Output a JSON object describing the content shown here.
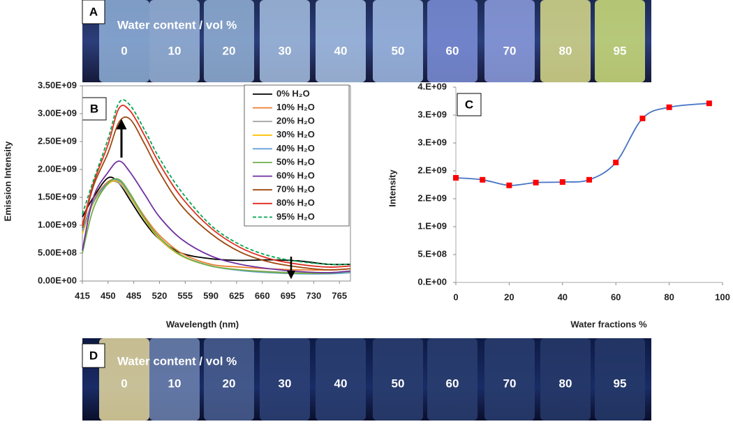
{
  "photo_a": {
    "label": "A",
    "caption": "Water content / vol %",
    "vials": [
      "0",
      "10",
      "20",
      "30",
      "40",
      "50",
      "60",
      "70",
      "80",
      "95"
    ]
  },
  "chart_data": [
    {
      "type": "line",
      "label": "B",
      "xlabel": "Wavelength (nm)",
      "ylabel": "Emission Intensity",
      "x": [
        415,
        430,
        450,
        465,
        480,
        500,
        520,
        550,
        590,
        630,
        670,
        710,
        750,
        780
      ],
      "series": [
        {
          "name": "0% H₂O",
          "color": "#000000",
          "values": [
            1150000000.0,
            1500000000.0,
            1850000000.0,
            1750000000.0,
            1450000000.0,
            1050000000.0,
            750000000.0,
            500000000.0,
            400000000.0,
            370000000.0,
            380000000.0,
            360000000.0,
            300000000.0,
            300000000.0
          ]
        },
        {
          "name": "10% H₂O",
          "color": "#ed7d31",
          "values": [
            900000000.0,
            1450000000.0,
            1780000000.0,
            1800000000.0,
            1550000000.0,
            1150000000.0,
            820000000.0,
            500000000.0,
            300000000.0,
            250000000.0,
            220000000.0,
            200000000.0,
            200000000.0,
            220000000.0
          ]
        },
        {
          "name": "20% H₂O",
          "color": "#a5a5a5",
          "values": [
            850000000.0,
            1400000000.0,
            1750000000.0,
            1750000000.0,
            1500000000.0,
            1100000000.0,
            750000000.0,
            450000000.0,
            270000000.0,
            200000000.0,
            170000000.0,
            150000000.0,
            150000000.0,
            170000000.0
          ]
        },
        {
          "name": "30% H₂O",
          "color": "#ffc000",
          "values": [
            850000000.0,
            1400000000.0,
            1740000000.0,
            1780000000.0,
            1520000000.0,
            1100000000.0,
            760000000.0,
            450000000.0,
            270000000.0,
            200000000.0,
            160000000.0,
            140000000.0,
            140000000.0,
            160000000.0
          ]
        },
        {
          "name": "40% H₂O",
          "color": "#5b9bd5",
          "values": [
            900000000.0,
            1420000000.0,
            1760000000.0,
            1800000000.0,
            1550000000.0,
            1120000000.0,
            780000000.0,
            460000000.0,
            270000000.0,
            190000000.0,
            150000000.0,
            130000000.0,
            130000000.0,
            150000000.0
          ]
        },
        {
          "name": "50% H₂O",
          "color": "#70ad47",
          "values": [
            500000000.0,
            1300000000.0,
            1750000000.0,
            1820000000.0,
            1570000000.0,
            1120000000.0,
            780000000.0,
            460000000.0,
            270000000.0,
            200000000.0,
            160000000.0,
            140000000.0,
            140000000.0,
            180000000.0
          ]
        },
        {
          "name": "60% H₂O",
          "color": "#7030a0",
          "values": [
            550000000.0,
            1500000000.0,
            1950000000.0,
            2150000000.0,
            1950000000.0,
            1550000000.0,
            1150000000.0,
            750000000.0,
            450000000.0,
            300000000.0,
            220000000.0,
            170000000.0,
            150000000.0,
            180000000.0
          ]
        },
        {
          "name": "70% H₂O",
          "color": "#9e480e",
          "values": [
            950000000.0,
            1700000000.0,
            2300000000.0,
            2850000000.0,
            2900000000.0,
            2450000000.0,
            1950000000.0,
            1350000000.0,
            850000000.0,
            520000000.0,
            340000000.0,
            250000000.0,
            200000000.0,
            220000000.0
          ]
        },
        {
          "name": "80% H₂O",
          "color": "#e02b1b",
          "values": [
            1000000000.0,
            1750000000.0,
            2450000000.0,
            3100000000.0,
            3050000000.0,
            2600000000.0,
            2100000000.0,
            1500000000.0,
            950000000.0,
            600000000.0,
            400000000.0,
            300000000.0,
            250000000.0,
            270000000.0
          ]
        },
        {
          "name": "95% H₂O",
          "color": "#00a651",
          "dashed": true,
          "values": [
            1200000000.0,
            1800000000.0,
            2550000000.0,
            3200000000.0,
            3150000000.0,
            2700000000.0,
            2200000000.0,
            1600000000.0,
            1000000000.0,
            650000000.0,
            450000000.0,
            350000000.0,
            300000000.0,
            300000000.0
          ]
        }
      ],
      "xlim": [
        415,
        780
      ],
      "xticks": [
        415,
        450,
        485,
        520,
        555,
        590,
        625,
        660,
        695,
        730,
        765
      ],
      "ylim": [
        0,
        3500000000.0
      ],
      "yticks": [
        {
          "value": 0,
          "label": "0.00E+00"
        },
        {
          "value": 500000000.0,
          "label": "5.00E+08"
        },
        {
          "value": 1000000000.0,
          "label": "1.00E+09"
        },
        {
          "value": 1500000000.0,
          "label": "1.50E+09"
        },
        {
          "value": 2000000000.0,
          "label": "2.00E+09"
        },
        {
          "value": 2500000000.0,
          "label": "2.50E+09"
        },
        {
          "value": 3000000000.0,
          "label": "3.00E+09"
        },
        {
          "value": 3500000000.0,
          "label": "3.50E+09"
        }
      ],
      "grid": false,
      "legend": "top-right"
    },
    {
      "type": "line",
      "label": "C",
      "xlabel": "Water fractions %",
      "ylabel": "Intensity",
      "x": [
        0,
        10,
        20,
        30,
        40,
        50,
        60,
        70,
        80,
        95
      ],
      "values": [
        1875000000.0,
        1840000000.0,
        1740000000.0,
        1790000000.0,
        1800000000.0,
        1840000000.0,
        2150000000.0,
        2940000000.0,
        3140000000.0,
        3210000000.0
      ],
      "color": "#4472c4",
      "marker_color": "#ff0000",
      "xlim": [
        0,
        100
      ],
      "xticks": [
        0,
        20,
        40,
        60,
        80,
        100
      ],
      "ylim": [
        0,
        3500000000.0
      ],
      "yticks": [
        {
          "value": 0,
          "label": "0.E+00"
        },
        {
          "value": 500000000.0,
          "label": "5.E+08"
        },
        {
          "value": 1000000000.0,
          "label": "1.E+09"
        },
        {
          "value": 1500000000.0,
          "label": "2.E+09"
        },
        {
          "value": 2000000000.0,
          "label": "2.E+09"
        },
        {
          "value": 2500000000.0,
          "label": "3.E+09"
        },
        {
          "value": 3000000000.0,
          "label": "3.E+09"
        },
        {
          "value": 3500000000.0,
          "label": "4.E+09"
        }
      ],
      "grid": false
    }
  ],
  "photo_d": {
    "label": "D",
    "caption": "Water content / vol %",
    "vials": [
      "0",
      "10",
      "20",
      "30",
      "40",
      "50",
      "60",
      "70",
      "80",
      "95"
    ]
  }
}
